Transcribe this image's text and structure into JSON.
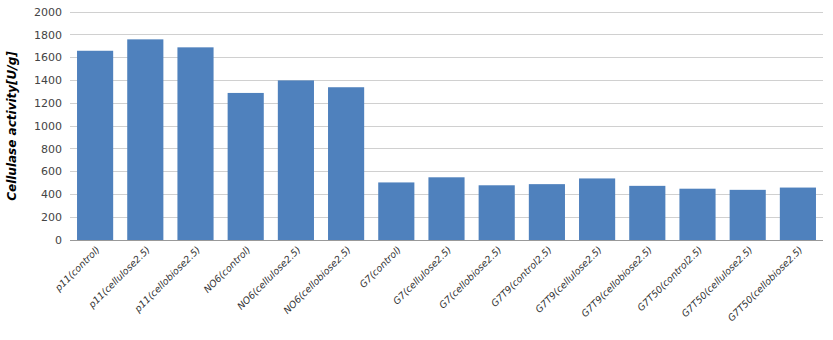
{
  "chart_data": {
    "type": "bar",
    "ylabel": "Cellulase activity[U/g]",
    "categories": [
      "p11(control)",
      "p11(cellulose2.5)",
      "p11(cellobiose2.5)",
      "NO6(control)",
      "NO6(cellulose2.5)",
      "NO6(cellobiose2.5)",
      "G7(control)",
      "G7(cellulose2.5)",
      "G7(cellobiose2.5)",
      "G7T9(control2.5)",
      "G7T9(cellulose2.5)",
      "G7T9(cellobiose2.5)",
      "G7T50(control2.5)",
      "G7T50(cellulose2.5)",
      "G7T50(cellobiose2.5)"
    ],
    "values": [
      1660,
      1760,
      1690,
      1290,
      1400,
      1340,
      505,
      550,
      480,
      490,
      540,
      475,
      450,
      440,
      460
    ],
    "color": "#4F81BD",
    "ylim": [
      0,
      2000
    ],
    "yticks": [
      0,
      200,
      400,
      600,
      800,
      1000,
      1200,
      1400,
      1600,
      1800,
      2000
    ],
    "grid": true
  }
}
